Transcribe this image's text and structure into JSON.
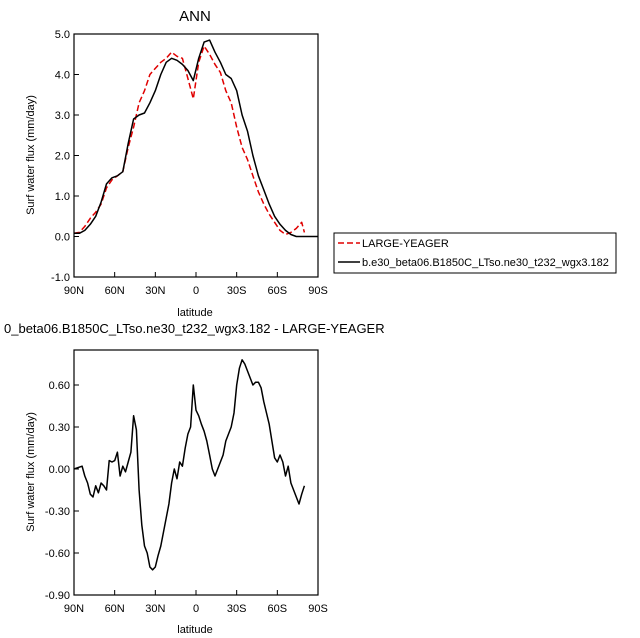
{
  "chart_data": [
    {
      "type": "line",
      "title": "ANN",
      "xlabel": "latitude",
      "ylabel": "Surf water flux (mm/day)",
      "x_ticks": [
        "90N",
        "60N",
        "30N",
        "0",
        "30S",
        "60S",
        "90S"
      ],
      "y_ticks": [
        "-1.0",
        "0.0",
        "1.0",
        "2.0",
        "3.0",
        "4.0",
        "5.0"
      ],
      "xlim": [
        90,
        -90
      ],
      "ylim": [
        -1.0,
        5.0
      ],
      "legend_position": "right",
      "series": [
        {
          "name": "LARGE-YEAGER",
          "color": "#e00000",
          "dash": "dashed",
          "x": [
            90,
            86,
            82,
            78,
            74,
            70,
            66,
            62,
            58,
            54,
            50,
            46,
            42,
            38,
            34,
            30,
            26,
            22,
            18,
            14,
            10,
            6,
            2,
            -2,
            -6,
            -10,
            -14,
            -18,
            -22,
            -26,
            -30,
            -34,
            -38,
            -42,
            -46,
            -50,
            -54,
            -58,
            -62,
            -66,
            -70,
            -74,
            -78,
            -80
          ],
          "y": [
            0.08,
            0.1,
            0.25,
            0.45,
            0.6,
            0.8,
            1.2,
            1.4,
            1.5,
            1.6,
            2.2,
            2.7,
            3.3,
            3.6,
            4.0,
            4.15,
            4.3,
            4.4,
            4.55,
            4.45,
            4.4,
            3.9,
            3.4,
            4.3,
            4.7,
            4.5,
            4.25,
            4.05,
            3.6,
            3.3,
            2.7,
            2.2,
            1.9,
            1.5,
            1.1,
            0.8,
            0.55,
            0.35,
            0.15,
            0.05,
            0.1,
            0.2,
            0.35,
            0.1
          ]
        },
        {
          "name": "b.e30_beta06.B1850C_LTso.ne30_t232_wgx3.182",
          "color": "#000000",
          "dash": "solid",
          "x": [
            90,
            86,
            82,
            78,
            74,
            70,
            66,
            62,
            58,
            54,
            50,
            46,
            42,
            38,
            34,
            30,
            26,
            22,
            18,
            14,
            10,
            6,
            2,
            -2,
            -6,
            -10,
            -14,
            -18,
            -22,
            -26,
            -30,
            -34,
            -38,
            -42,
            -46,
            -50,
            -54,
            -58,
            -62,
            -66,
            -70,
            -74,
            -78,
            -82,
            -86,
            -90
          ],
          "y": [
            0.08,
            0.08,
            0.15,
            0.3,
            0.5,
            0.85,
            1.3,
            1.45,
            1.5,
            1.6,
            2.3,
            2.9,
            3.0,
            3.05,
            3.3,
            3.6,
            4.0,
            4.3,
            4.4,
            4.35,
            4.25,
            4.1,
            3.85,
            4.4,
            4.8,
            4.85,
            4.55,
            4.3,
            4.0,
            3.9,
            3.6,
            3.0,
            2.6,
            2.0,
            1.5,
            1.15,
            0.8,
            0.5,
            0.3,
            0.15,
            0.05,
            0.0,
            0.0,
            0.0,
            0.0,
            0.0
          ]
        }
      ]
    },
    {
      "type": "line",
      "title": "0_beta06.B1850C_LTso.ne30_t232_wgx3.182 - LARGE-YEAGER",
      "xlabel": "latitude",
      "ylabel": "Surf water flux (mm/day)",
      "x_ticks": [
        "90N",
        "60N",
        "30N",
        "0",
        "30S",
        "60S",
        "90S"
      ],
      "y_ticks": [
        "-0.90",
        "-0.60",
        "-0.30",
        "0.00",
        "0.30",
        "0.60"
      ],
      "xlim": [
        90,
        -90
      ],
      "ylim": [
        -0.9,
        0.85
      ],
      "series": [
        {
          "color": "#000000",
          "dash": "solid",
          "x": [
            90,
            84,
            82,
            80,
            78,
            76,
            74,
            72,
            70,
            68,
            66,
            64,
            62,
            60,
            58,
            56,
            54,
            52,
            50,
            48,
            46,
            44,
            42,
            40,
            38,
            36,
            34,
            32,
            30,
            28,
            26,
            24,
            22,
            20,
            18,
            16,
            14,
            12,
            10,
            8,
            6,
            4,
            2,
            0,
            -2,
            -4,
            -6,
            -8,
            -10,
            -12,
            -14,
            -16,
            -18,
            -20,
            -22,
            -24,
            -26,
            -28,
            -30,
            -32,
            -34,
            -36,
            -38,
            -40,
            -42,
            -44,
            -46,
            -48,
            -50,
            -52,
            -54,
            -56,
            -58,
            -60,
            -62,
            -64,
            -66,
            -68,
            -70,
            -72,
            -74,
            -76,
            -78,
            -80
          ],
          "y": [
            0.0,
            0.02,
            -0.05,
            -0.1,
            -0.18,
            -0.2,
            -0.12,
            -0.17,
            -0.1,
            -0.12,
            -0.15,
            0.06,
            0.05,
            0.06,
            0.12,
            -0.05,
            0.02,
            -0.02,
            0.05,
            0.12,
            0.38,
            0.28,
            -0.15,
            -0.4,
            -0.55,
            -0.6,
            -0.7,
            -0.72,
            -0.7,
            -0.62,
            -0.55,
            -0.45,
            -0.35,
            -0.25,
            -0.1,
            0.0,
            -0.07,
            0.05,
            0.02,
            0.15,
            0.25,
            0.3,
            0.6,
            0.42,
            0.38,
            0.32,
            0.27,
            0.2,
            0.1,
            0.0,
            -0.05,
            0.0,
            0.05,
            0.1,
            0.2,
            0.25,
            0.3,
            0.4,
            0.6,
            0.72,
            0.78,
            0.75,
            0.7,
            0.65,
            0.6,
            0.62,
            0.62,
            0.58,
            0.48,
            0.4,
            0.32,
            0.2,
            0.08,
            0.05,
            0.1,
            0.05,
            -0.05,
            0.02,
            -0.1,
            -0.15,
            -0.2,
            -0.25,
            -0.18,
            -0.12
          ]
        }
      ]
    }
  ]
}
